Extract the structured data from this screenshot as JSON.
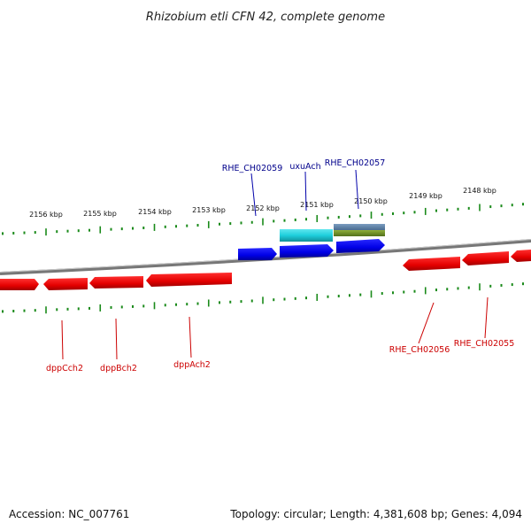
{
  "title": "Rhizobium etli CFN 42, complete genome",
  "footer": {
    "accession": "Accession: NC_007761",
    "summary": "Topology: circular; Length: 4,381,608 bp; Genes: 4,094"
  },
  "scale": {
    "labels": [
      "2156 kbp",
      "2155 kbp",
      "2154 kbp",
      "2153 kbp",
      "2152 kbp",
      "2151 kbp",
      "2150 kbp",
      "2149 kbp",
      "2148 kbp"
    ]
  },
  "genes": {
    "forward": [
      {
        "name": "RHE_CH02059"
      },
      {
        "name": "uxuAch"
      },
      {
        "name": "RHE_CH02057"
      }
    ],
    "reverse": [
      {
        "name": "dppCch2"
      },
      {
        "name": "dppBch2"
      },
      {
        "name": "dppAch2"
      },
      {
        "name": "RHE_CH02056"
      },
      {
        "name": "RHE_CH02055"
      }
    ]
  },
  "colors": {
    "forward_gene": "#0000ee",
    "reverse_gene": "#ee0000",
    "forward_label": "#00008b",
    "reverse_label": "#cc0000",
    "cds_cyan": "#1ecfdc",
    "cds_green": "#6f8f2a",
    "tick": "#1a8a1a",
    "backbone": "#888888"
  }
}
